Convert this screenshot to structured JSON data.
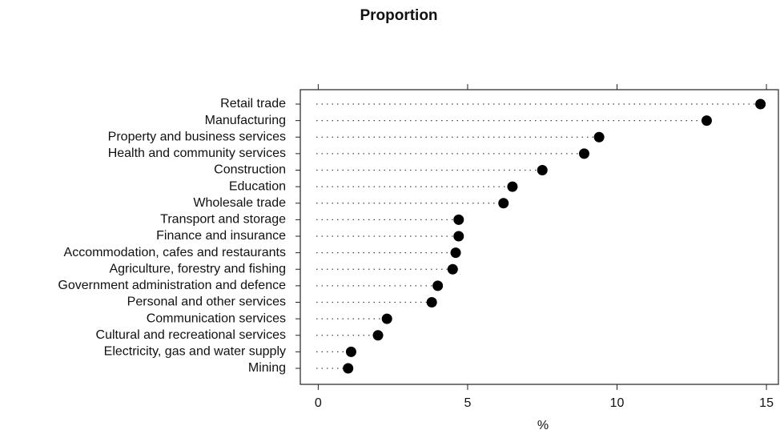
{
  "chart_data": {
    "type": "dot",
    "title": "Proportion",
    "xlabel": "%",
    "categories": [
      "Retail trade",
      "Manufacturing",
      "Property and business services",
      "Health and community services",
      "Construction",
      "Education",
      "Wholesale trade",
      "Transport and storage",
      "Finance and insurance",
      "Accommodation, cafes and restaurants",
      "Agriculture, forestry and fishing",
      "Government administration and defence",
      "Personal and other services",
      "Communication services",
      "Cultural and recreational services",
      "Electricity, gas and water supply",
      "Mining"
    ],
    "values": [
      14.8,
      13.0,
      9.4,
      8.9,
      7.5,
      6.5,
      6.2,
      4.7,
      4.7,
      4.6,
      4.5,
      4.0,
      3.8,
      2.3,
      2.0,
      1.1,
      1.0
    ],
    "color": "#000000",
    "xlim": [
      -0.6,
      15.4
    ],
    "xticks": [
      0,
      5,
      10,
      15
    ]
  }
}
